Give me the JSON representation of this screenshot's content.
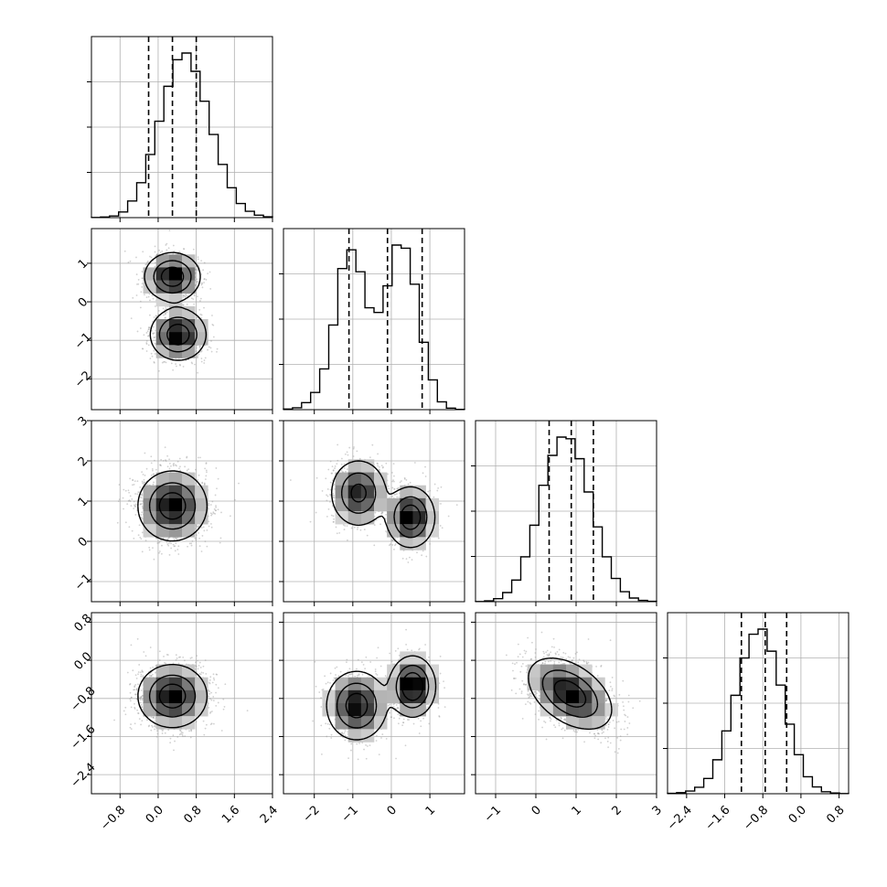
{
  "chart_data": {
    "type": "corner",
    "grid": true,
    "ndim": 4,
    "parameters": [
      {
        "range": [
          -1.4,
          2.4
        ],
        "ticks": [
          -0.8,
          0.0,
          0.8,
          1.6,
          2.4
        ],
        "tick_labels": [
          "−0.8",
          "0.0",
          "0.8",
          "1.6",
          "2.4"
        ]
      },
      {
        "range": [
          -2.8,
          1.9
        ],
        "ticks": [
          -2,
          -1,
          0,
          1
        ],
        "tick_labels": [
          "−2",
          "−1",
          "0",
          "1"
        ]
      },
      {
        "range": [
          -1.5,
          3.0
        ],
        "ticks": [
          -1,
          0,
          1,
          2,
          3
        ],
        "tick_labels": [
          "−1",
          "0",
          "1",
          "2",
          "3"
        ]
      },
      {
        "range": [
          -2.8,
          1.0
        ],
        "ticks": [
          -2.4,
          -1.6,
          -0.8,
          0.0,
          0.8
        ],
        "tick_labels": [
          "−2.4",
          "−1.6",
          "−0.8",
          "0.0",
          "0.8"
        ]
      }
    ],
    "histograms": [
      {
        "param": 0,
        "bins": [
          -1.4,
          2.4
        ],
        "counts": [
          1,
          4,
          10,
          34,
          100,
          210,
          380,
          580,
          790,
          950,
          990,
          880,
          700,
          500,
          320,
          180,
          85,
          38,
          15,
          5
        ],
        "quantiles": [
          -0.2,
          0.3,
          0.8
        ]
      },
      {
        "param": 1,
        "bins": [
          -2.8,
          1.9
        ],
        "counts": [
          4,
          12,
          45,
          110,
          260,
          540,
          900,
          1020,
          880,
          650,
          620,
          790,
          1050,
          1030,
          800,
          430,
          190,
          50,
          10,
          2
        ],
        "quantiles": [
          -1.1,
          -0.1,
          0.8
        ]
      },
      {
        "param": 2,
        "bins": [
          -1.5,
          3.0
        ],
        "counts": [
          1,
          5,
          18,
          55,
          130,
          270,
          460,
          700,
          880,
          990,
          980,
          860,
          660,
          450,
          270,
          140,
          60,
          22,
          8,
          2
        ],
        "quantiles": [
          0.33,
          0.88,
          1.43
        ]
      },
      {
        "param": 3,
        "bins": [
          -2.8,
          1.0
        ],
        "counts": [
          2,
          6,
          16,
          38,
          90,
          200,
          370,
          580,
          800,
          940,
          970,
          840,
          640,
          410,
          230,
          100,
          40,
          12,
          4,
          1
        ],
        "quantiles": [
          -1.25,
          -0.75,
          -0.3
        ]
      }
    ],
    "pairs": [
      {
        "x": 0,
        "y": 1,
        "modes": [
          {
            "x": 0.3,
            "y": 0.65,
            "sx": 0.28,
            "sy": 0.3,
            "weight": 0.5
          },
          {
            "x": 0.42,
            "y": -0.85,
            "sx": 0.28,
            "sy": 0.32,
            "weight": 0.5
          }
        ]
      },
      {
        "x": 0,
        "y": 2,
        "modes": [
          {
            "x": 0.3,
            "y": 0.88,
            "sx": 0.35,
            "sy": 0.42,
            "weight": 1.0
          }
        ]
      },
      {
        "x": 1,
        "y": 2,
        "modes": [
          {
            "x": -0.85,
            "y": 1.2,
            "sx": 0.35,
            "sy": 0.4,
            "weight": 0.45
          },
          {
            "x": 0.5,
            "y": 0.6,
            "sx": 0.3,
            "sy": 0.36,
            "weight": 0.55
          }
        ]
      },
      {
        "x": 0,
        "y": 3,
        "modes": [
          {
            "x": 0.3,
            "y": -0.75,
            "sx": 0.35,
            "sy": 0.32,
            "weight": 1.0
          }
        ]
      },
      {
        "x": 1,
        "y": 3,
        "modes": [
          {
            "x": -0.9,
            "y": -0.95,
            "sx": 0.38,
            "sy": 0.35,
            "weight": 0.45
          },
          {
            "x": 0.55,
            "y": -0.55,
            "sx": 0.28,
            "sy": 0.3,
            "weight": 0.55
          }
        ]
      },
      {
        "x": 2,
        "y": 3,
        "modes": [
          {
            "x": 0.85,
            "y": -0.7,
            "sx": 0.5,
            "sy": 0.36,
            "weight": 1.0,
            "rho": -0.45
          }
        ]
      }
    ]
  }
}
